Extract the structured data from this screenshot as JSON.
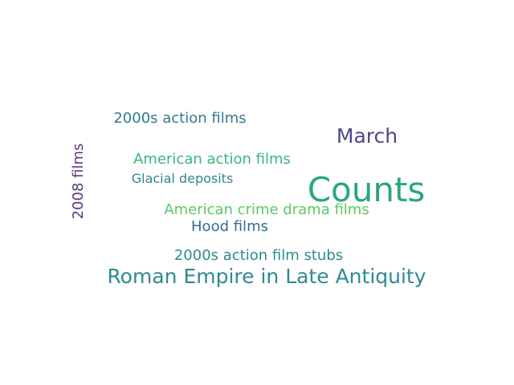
{
  "chart_data": {
    "type": "wordcloud",
    "title": "",
    "words": [
      {
        "text": "Counts",
        "weight": 1.0,
        "color": "#2aa67d"
      },
      {
        "text": "Roman Empire in Late Antiquity",
        "weight": 0.55,
        "color": "#2e8a92"
      },
      {
        "text": "March",
        "weight": 0.5,
        "color": "#4a4a86"
      },
      {
        "text": "2008 films",
        "weight": 0.42,
        "color": "#5a3b7d",
        "orientation": "vertical"
      },
      {
        "text": "2000s action films",
        "weight": 0.4,
        "color": "#337a8e"
      },
      {
        "text": "American action films",
        "weight": 0.4,
        "color": "#3ab47e"
      },
      {
        "text": "American crime drama films",
        "weight": 0.4,
        "color": "#5dc863"
      },
      {
        "text": "2000s action film stubs",
        "weight": 0.4,
        "color": "#2e8a8c"
      },
      {
        "text": "Hood films",
        "weight": 0.4,
        "color": "#2f6f8d"
      },
      {
        "text": "Glacial deposits",
        "weight": 0.36,
        "color": "#31868e"
      }
    ]
  }
}
